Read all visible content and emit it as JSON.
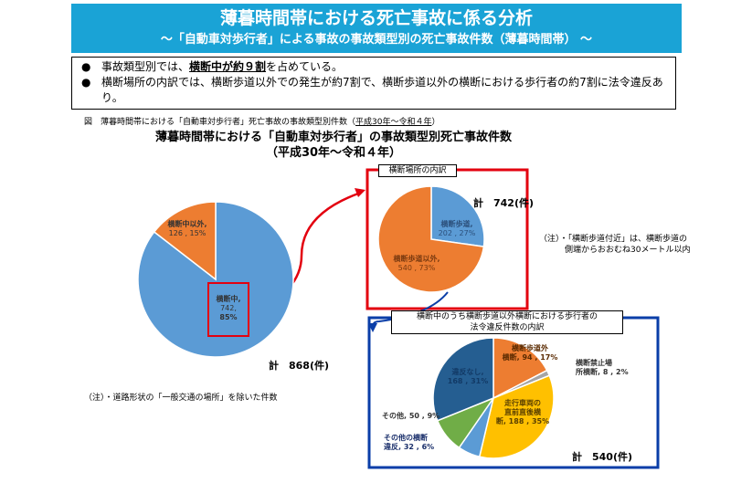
{
  "header": {
    "title": "薄暮時間帯における死亡事故に係る分析",
    "subtitle": "～「自動車対歩行者」による事故の事故類型別の死亡事故件数（薄暮時間帯） ～"
  },
  "bullets": {
    "b1_pre": "事故類型別では、",
    "b1_hl": "横断中が約９割",
    "b1_post": "を占めている。",
    "b2": "横断場所の内訳では、横断歩道以外での発生が約7割で、横断歩道以外の横断における歩行者の約7割に法令違反あり。",
    "bullet_glyph": "●"
  },
  "figure": {
    "caption_pre": "図　薄暮時間帯における「自動車対歩行者」死亡事故の事故類型別件数（",
    "caption_period": "平成30年～令和４年",
    "caption_post": "）",
    "title_line1": "薄暮時間帯における「自動車対歩行者」の事故類型別死亡事故件数",
    "title_line2": "（平成30年～令和４年）"
  },
  "notes": {
    "road_note": "（注）・道路形状の「一般交通の場所」を除いた件数",
    "crossing_note_line1": "（注）・「横断歩道付近」は、横断歩道の",
    "crossing_note_line2": "側端からおおむね30メートル以内"
  },
  "boxes": {
    "crossing_place": "横断場所の内訳",
    "violation_line1": "横断中のうち横断歩道以外横断における歩行者の",
    "violation_line2": "法令違反件数の内訳"
  },
  "colors": {
    "header_bg": "#1aa3d6",
    "blue": "#5b9bd5",
    "orange": "#ed7d31",
    "gray": "#a5a5a5",
    "yellow": "#ffc000",
    "navy": "#255e91",
    "green": "#70ad47",
    "red_frame": "#e3000f",
    "blue_frame": "#0a3ea8"
  },
  "chart_data": [
    {
      "type": "pie",
      "total_label": "計　868(件)",
      "slices": [
        {
          "label_line1": "横断中,",
          "value_text": "742,",
          "pct_text": "85%",
          "value": 742,
          "percent": 85,
          "color": "#5b9bd5"
        },
        {
          "label_line1": "横断中以外,",
          "value_text": "126 , 15%",
          "pct_text": "",
          "value": 126,
          "percent": 15,
          "color": "#ed7d31"
        }
      ]
    },
    {
      "type": "pie",
      "total_label": "計　742(件)",
      "slices": [
        {
          "label_line1": "横断歩道,",
          "value_text": "202 , 27%",
          "value": 202,
          "percent": 27,
          "color": "#5b9bd5"
        },
        {
          "label_line1": "横断歩道以外,",
          "value_text": "540 , 73%",
          "value": 540,
          "percent": 73,
          "color": "#ed7d31"
        }
      ]
    },
    {
      "type": "pie",
      "total_label": "計　540(件)",
      "slices": [
        {
          "label_line1": "横断歩道外",
          "label_line2": "横断, 94 , 17%",
          "value": 94,
          "percent": 17,
          "color": "#ed7d31"
        },
        {
          "label_line1": "横断禁止場",
          "label_line2": "所横断, 8 , 2%",
          "value": 8,
          "percent": 2,
          "color": "#a5a5a5"
        },
        {
          "label_line1": "走行車両の",
          "label_line2": "直前直後横",
          "label_line3": "断, 188 , 35%",
          "value": 188,
          "percent": 35,
          "color": "#ffc000"
        },
        {
          "label_line1": "その他の横断",
          "label_line2": "違反, 32 , 6%",
          "value": 32,
          "percent": 6,
          "color": "#5b9bd5"
        },
        {
          "label_line1": "その他, 50 , 9%",
          "value": 50,
          "percent": 9,
          "color": "#70ad47"
        },
        {
          "label_line1": "違反なし,",
          "label_line2": "168 , 31%",
          "value": 168,
          "percent": 31,
          "color": "#255e91"
        }
      ]
    }
  ]
}
